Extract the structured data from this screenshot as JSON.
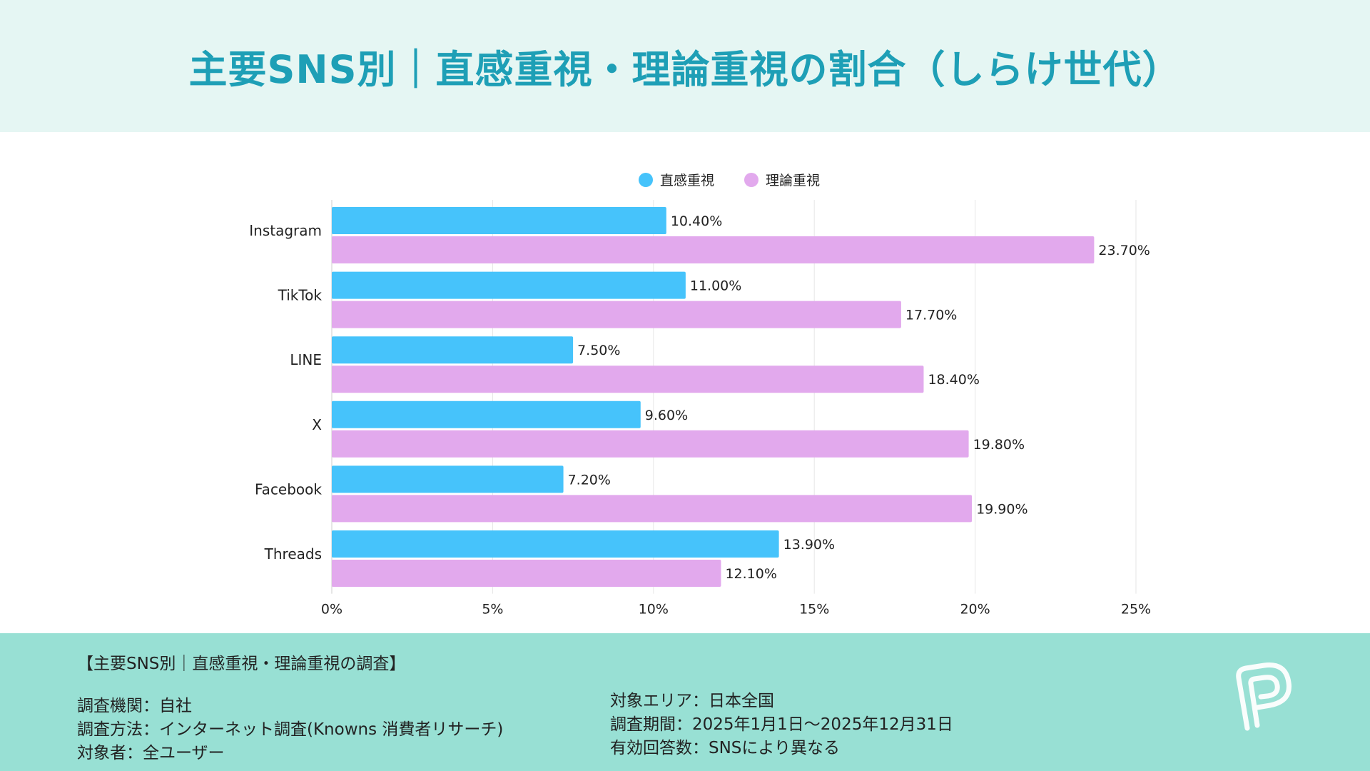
{
  "header": {
    "title": "主要SNS別｜直感重視・理論重視の割合（しらけ世代）"
  },
  "chart_data": {
    "type": "bar",
    "orientation": "horizontal",
    "title": "主要SNS別｜直感重視・理論重視の割合（しらけ世代）",
    "categories": [
      "Instagram",
      "TikTok",
      "LINE",
      "X",
      "Facebook",
      "Threads"
    ],
    "series": [
      {
        "name": "直感重視",
        "color": "#46c3fb",
        "values": [
          10.4,
          11.0,
          7.5,
          9.6,
          7.2,
          13.9
        ],
        "labels": [
          "10.40%",
          "11.00%",
          "7.50%",
          "9.60%",
          "7.20%",
          "13.90%"
        ]
      },
      {
        "name": "理論重視",
        "color": "#e2a9ed",
        "values": [
          23.7,
          17.7,
          18.4,
          19.8,
          19.9,
          12.1
        ],
        "labels": [
          "23.70%",
          "17.70%",
          "18.40%",
          "19.80%",
          "19.90%",
          "12.10%"
        ]
      }
    ],
    "xlim": [
      0,
      25
    ],
    "xticks": [
      0,
      5,
      10,
      15,
      20,
      25
    ],
    "xtick_labels": [
      "0%",
      "5%",
      "10%",
      "15%",
      "20%",
      "25%"
    ],
    "grid": true,
    "legend_position": "top-center"
  },
  "footer": {
    "survey_title": "【主要SNS別｜直感重視・理論重視の調査】",
    "organization": "調査機関：自社",
    "method": "調査方法：インターネット調査(Knowns 消費者リサーチ)",
    "target": "対象者：全ユーザー",
    "area": "対象エリア：日本全国",
    "period": "調査期間：2025年1月1日～2025年12月31日",
    "responses": "有効回答数：SNSにより異なる"
  },
  "colors": {
    "header_bg": "#e5f6f3",
    "title": "#1e9fb6",
    "footer_bg": "#98e0d4",
    "grid": "#e6e6e6"
  },
  "logo": {
    "icon": "p-logo-icon"
  }
}
